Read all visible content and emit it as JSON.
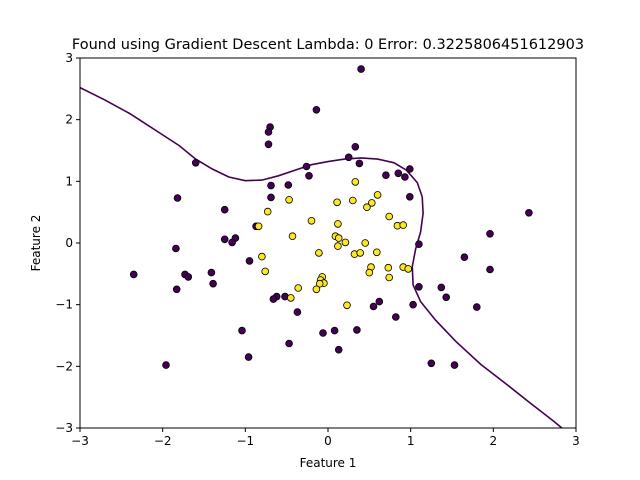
{
  "chart_data": {
    "type": "scatter",
    "title": "Found using Gradient Descent  Lambda: 0 Error: 0.3225806451612903",
    "xlabel": "Feature 1",
    "ylabel": "Feature 2",
    "xlim": [
      -3,
      3
    ],
    "ylim": [
      -3,
      3
    ],
    "xticks": [
      -3,
      -2,
      -1,
      0,
      1,
      2,
      3
    ],
    "yticks": [
      -3,
      -2,
      -1,
      0,
      1,
      2,
      3
    ],
    "tick_labels_x": [
      "−3",
      "−2",
      "−1",
      "0",
      "1",
      "2",
      "3"
    ],
    "tick_labels_y": [
      "−3",
      "−2",
      "−1",
      "0",
      "1",
      "2",
      "3"
    ],
    "grid": false,
    "colors": {
      "class0": "#440154",
      "class1": "#fde725",
      "edge": "#000000",
      "boundary": "#440154"
    },
    "series": [
      {
        "class": 0,
        "points": [
          [
            0.4,
            2.82
          ],
          [
            -0.14,
            2.16
          ],
          [
            -0.7,
            1.88
          ],
          [
            -0.72,
            1.8
          ],
          [
            -0.72,
            1.6
          ],
          [
            0.33,
            1.56
          ],
          [
            0.25,
            1.39
          ],
          [
            0.38,
            1.29
          ],
          [
            -1.6,
            1.3
          ],
          [
            -0.26,
            1.24
          ],
          [
            -0.23,
            1.09
          ],
          [
            -0.69,
            0.93
          ],
          [
            -0.48,
            0.94
          ],
          [
            0.7,
            1.1
          ],
          [
            0.85,
            1.13
          ],
          [
            0.93,
            1.07
          ],
          [
            0.99,
            1.2
          ],
          [
            -0.69,
            0.74
          ],
          [
            -1.82,
            0.73
          ],
          [
            0.99,
            0.75
          ],
          [
            2.43,
            0.49
          ],
          [
            -1.25,
            0.54
          ],
          [
            -0.87,
            0.27
          ],
          [
            -1.12,
            0.08
          ],
          [
            -1.25,
            0.06
          ],
          [
            -1.16,
            0.01
          ],
          [
            1.1,
            -0.02
          ],
          [
            1.96,
            0.15
          ],
          [
            -1.84,
            -0.09
          ],
          [
            -0.95,
            -0.29
          ],
          [
            -1.41,
            -0.48
          ],
          [
            -1.73,
            -0.51
          ],
          [
            -1.69,
            -0.55
          ],
          [
            -2.35,
            -0.51
          ],
          [
            1.65,
            -0.23
          ],
          [
            1.96,
            -0.43
          ],
          [
            -1.39,
            -0.66
          ],
          [
            -1.83,
            -0.75
          ],
          [
            1.1,
            -0.71
          ],
          [
            1.37,
            -0.72
          ],
          [
            -0.62,
            -0.87
          ],
          [
            -0.66,
            -0.91
          ],
          [
            -0.52,
            -0.87
          ],
          [
            1.43,
            -0.88
          ],
          [
            0.55,
            -1.03
          ],
          [
            0.62,
            -0.95
          ],
          [
            1.03,
            -1.0
          ],
          [
            1.8,
            -1.04
          ],
          [
            -0.37,
            -1.12
          ],
          [
            0.82,
            -1.2
          ],
          [
            -1.04,
            -1.42
          ],
          [
            0.08,
            -1.42
          ],
          [
            -0.06,
            -1.46
          ],
          [
            0.35,
            -1.41
          ],
          [
            -0.47,
            -1.63
          ],
          [
            0.13,
            -1.73
          ],
          [
            -0.96,
            -1.85
          ],
          [
            -1.96,
            -1.98
          ],
          [
            1.25,
            -1.95
          ],
          [
            1.53,
            -1.98
          ]
        ]
      },
      {
        "class": 1,
        "points": [
          [
            0.33,
            0.99
          ],
          [
            0.6,
            0.78
          ],
          [
            0.53,
            0.65
          ],
          [
            0.47,
            0.58
          ],
          [
            0.11,
            0.66
          ],
          [
            0.3,
            0.69
          ],
          [
            -0.47,
            0.7
          ],
          [
            -0.73,
            0.51
          ],
          [
            0.74,
            0.43
          ],
          [
            0.84,
            0.28
          ],
          [
            0.91,
            0.29
          ],
          [
            -0.2,
            0.36
          ],
          [
            0.12,
            0.31
          ],
          [
            -0.84,
            0.27
          ],
          [
            0.09,
            0.11
          ],
          [
            0.13,
            0.08
          ],
          [
            0.21,
            0.01
          ],
          [
            0.45,
            0.0
          ],
          [
            -0.43,
            0.11
          ],
          [
            0.12,
            -0.05
          ],
          [
            0.32,
            -0.18
          ],
          [
            0.39,
            -0.16
          ],
          [
            -0.11,
            -0.16
          ],
          [
            0.59,
            -0.15
          ],
          [
            -0.8,
            -0.22
          ],
          [
            0.91,
            -0.39
          ],
          [
            0.97,
            -0.42
          ],
          [
            0.73,
            -0.4
          ],
          [
            0.52,
            -0.39
          ],
          [
            0.5,
            -0.48
          ],
          [
            -0.07,
            -0.55
          ],
          [
            -0.09,
            -0.6
          ],
          [
            -0.05,
            -0.65
          ],
          [
            -0.1,
            -0.66
          ],
          [
            0.74,
            -0.56
          ],
          [
            -0.76,
            -0.46
          ],
          [
            -0.36,
            -0.73
          ],
          [
            -0.14,
            -0.75
          ],
          [
            -0.45,
            -0.89
          ],
          [
            0.23,
            -1.01
          ]
        ]
      }
    ],
    "decision_boundary": [
      [
        -3.0,
        2.52
      ],
      [
        -2.7,
        2.32
      ],
      [
        -2.4,
        2.1
      ],
      [
        -2.1,
        1.84
      ],
      [
        -1.8,
        1.58
      ],
      [
        -1.6,
        1.36
      ],
      [
        -1.4,
        1.2
      ],
      [
        -1.2,
        1.07
      ],
      [
        -1.0,
        1.01
      ],
      [
        -0.8,
        1.02
      ],
      [
        -0.6,
        1.09
      ],
      [
        -0.4,
        1.18
      ],
      [
        -0.2,
        1.27
      ],
      [
        0.0,
        1.32
      ],
      [
        0.2,
        1.36
      ],
      [
        0.4,
        1.38
      ],
      [
        0.6,
        1.36
      ],
      [
        0.8,
        1.3
      ],
      [
        0.95,
        1.18
      ],
      [
        1.08,
        0.98
      ],
      [
        1.14,
        0.75
      ],
      [
        1.15,
        0.48
      ],
      [
        1.12,
        0.18
      ],
      [
        1.06,
        -0.1
      ],
      [
        1.02,
        -0.38
      ],
      [
        1.03,
        -0.68
      ],
      [
        1.12,
        -0.95
      ],
      [
        1.3,
        -1.25
      ],
      [
        1.55,
        -1.6
      ],
      [
        1.85,
        -1.97
      ],
      [
        2.15,
        -2.28
      ],
      [
        2.45,
        -2.6
      ],
      [
        2.72,
        -2.88
      ],
      [
        2.83,
        -3.0
      ]
    ]
  }
}
